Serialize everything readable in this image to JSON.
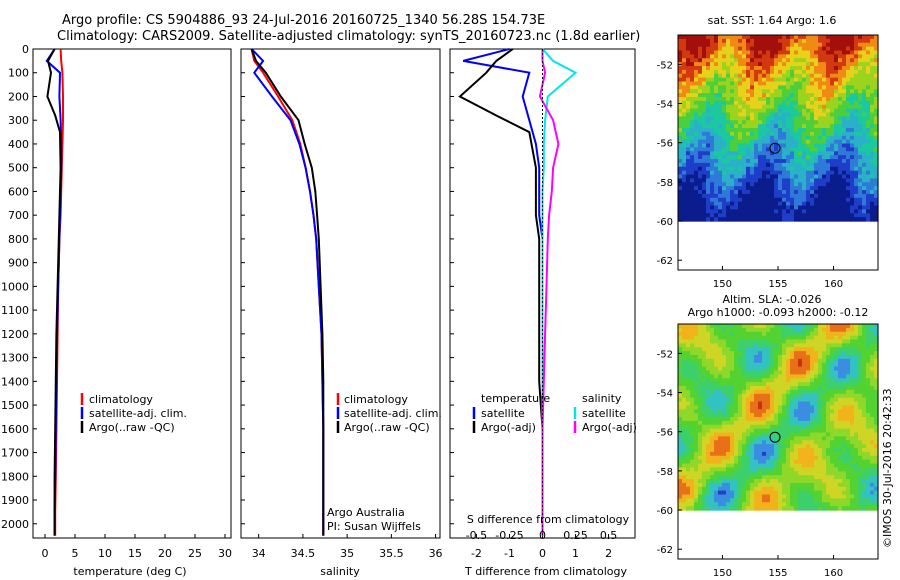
{
  "header": {
    "line1": "Argo profile: CS 5904886_93 24-Jul-2016 20160725_1340 56.28S 154.73E",
    "line2": "Climatology: CARS2009. Satellite-adjusted climatology: synTS_20160723.nc (1.8d earlier)"
  },
  "colors": {
    "climatology": "#ff0000",
    "satellite": "#0000ff",
    "argo": "#000000",
    "satellite_salinity": "#00e5ee",
    "argo_salinity": "#ff00ff"
  },
  "depth_axis": {
    "ticks": [
      "0",
      "100",
      "200",
      "300",
      "400",
      "500",
      "600",
      "700",
      "800",
      "900",
      "1000",
      "1100",
      "1200",
      "1300",
      "1400",
      "1500",
      "1600",
      "1700",
      "1800",
      "1900",
      "2000"
    ]
  },
  "temp_panel": {
    "xlabel": "temperature (deg C)",
    "ticks": [
      "0",
      "5",
      "10",
      "15",
      "20",
      "25",
      "30"
    ],
    "legend": [
      "climatology",
      "satellite-adj. clim.",
      "Argo(..raw -QC)"
    ]
  },
  "sal_panel": {
    "xlabel": "salinity",
    "ticks": [
      "34",
      "34.5",
      "35",
      "35.5",
      "36"
    ],
    "legend": [
      "climatology",
      "satellite-adj. clim.",
      "Argo(..raw -QC)"
    ],
    "note1": "Argo Australia",
    "note2": "PI: Susan Wijffels"
  },
  "diff_panel": {
    "xlabel": "T difference from climatology",
    "top_label": "S difference from climatology",
    "t_ticks": [
      "-2",
      "-1",
      "0",
      "1",
      "2"
    ],
    "s_ticks": [
      "-0.5",
      "-0.25",
      "0",
      "0.25",
      "0.5"
    ],
    "legend_temp_title": "temperature",
    "legend_sal_title": "salinity",
    "legend_temp": [
      "satellite",
      "Argo(-adj)"
    ],
    "legend_sal": [
      "satellite",
      "Argo(-adj)"
    ]
  },
  "map_sst": {
    "title": "sat. SST: 1.64 Argo: 1.6",
    "yticks": [
      "-52",
      "-54",
      "-56",
      "-58",
      "-60",
      "-62"
    ],
    "xticks": [
      "150",
      "155",
      "160"
    ]
  },
  "map_sla": {
    "title1": "Altim. SLA: -0.026",
    "title2": "Argo h1000: -0.093 h2000: -0.12",
    "yticks": [
      "-52",
      "-54",
      "-56",
      "-58",
      "-60",
      "-62"
    ],
    "xticks": [
      "150",
      "155",
      "160"
    ]
  },
  "credit": "©IMOS 30-Jul-2016 20:42:33",
  "chart_data": [
    {
      "type": "line",
      "name": "temperature profile",
      "xlabel": "temperature (deg C)",
      "ylabel": "",
      "xlim": [
        -2,
        31
      ],
      "ylim": [
        2060,
        0
      ],
      "series": [
        {
          "name": "climatology",
          "x": [
            2.6,
            2.7,
            2.9,
            3.0,
            3.0,
            2.9,
            2.8,
            2.7,
            2.6,
            2.4,
            2.2,
            2.1,
            2.0,
            1.9,
            1.8,
            1.7,
            1.7
          ],
          "y": [
            0,
            50,
            100,
            200,
            300,
            400,
            500,
            600,
            700,
            800,
            1000,
            1200,
            1400,
            1600,
            1800,
            1950,
            2050
          ]
        },
        {
          "name": "satellite-adj. clim.",
          "x": [
            1.6,
            0.3,
            2.5,
            2.4,
            2.6,
            2.7,
            2.7,
            2.6,
            2.5,
            2.4,
            2.2,
            2.0,
            1.9,
            1.8,
            1.7,
            1.6,
            1.6
          ],
          "y": [
            0,
            50,
            100,
            200,
            300,
            400,
            500,
            600,
            700,
            800,
            1000,
            1200,
            1400,
            1600,
            1800,
            1950,
            2050
          ]
        },
        {
          "name": "Argo(..raw -QC)",
          "x": [
            1.6,
            0.5,
            1.0,
            0.4,
            1.7,
            2.5,
            2.6,
            2.5,
            2.4,
            2.3,
            2.1,
            1.9,
            1.8,
            1.7,
            1.6,
            1.6,
            1.6
          ],
          "y": [
            0,
            50,
            100,
            200,
            280,
            350,
            500,
            600,
            700,
            800,
            1000,
            1200,
            1400,
            1600,
            1800,
            1950,
            2050
          ]
        }
      ]
    },
    {
      "type": "line",
      "name": "salinity profile",
      "xlabel": "salinity",
      "ylabel": "",
      "xlim": [
        33.8,
        36.05
      ],
      "ylim": [
        2060,
        0
      ],
      "series": [
        {
          "name": "climatology",
          "x": [
            33.92,
            33.95,
            34.05,
            34.22,
            34.38,
            34.47,
            34.53,
            34.58,
            34.62,
            34.65,
            34.68,
            34.71,
            34.72,
            34.73,
            34.73,
            34.73,
            34.73
          ],
          "y": [
            0,
            50,
            100,
            200,
            300,
            400,
            500,
            600,
            700,
            800,
            1000,
            1200,
            1400,
            1600,
            1800,
            1950,
            2050
          ]
        },
        {
          "name": "satellite-adj. clim.",
          "x": [
            33.92,
            34.05,
            33.95,
            34.15,
            34.36,
            34.46,
            34.53,
            34.58,
            34.62,
            34.65,
            34.68,
            34.71,
            34.72,
            34.73,
            34.73,
            34.73,
            34.73
          ],
          "y": [
            0,
            50,
            100,
            200,
            300,
            400,
            500,
            600,
            700,
            800,
            1000,
            1200,
            1400,
            1600,
            1800,
            1950,
            2050
          ]
        },
        {
          "name": "Argo(..raw -QC)",
          "x": [
            33.92,
            33.97,
            34.08,
            34.25,
            34.45,
            34.52,
            34.6,
            34.64,
            34.66,
            34.68,
            34.7,
            34.72,
            34.73,
            34.73,
            34.73,
            34.73,
            34.73
          ],
          "y": [
            0,
            50,
            100,
            200,
            300,
            400,
            500,
            600,
            700,
            800,
            1000,
            1200,
            1400,
            1600,
            1800,
            1950,
            2050
          ]
        }
      ]
    },
    {
      "type": "line",
      "name": "difference from climatology",
      "xlabel": "T difference from climatology",
      "ylabel": "",
      "xlim": [
        -2.8,
        2.8
      ],
      "ylim": [
        2060,
        0
      ],
      "series": [
        {
          "name": "temperature satellite",
          "x": [
            -1.0,
            -2.4,
            -0.4,
            -0.6,
            -0.4,
            -0.2,
            -0.1,
            -0.1,
            -0.1,
            0,
            0,
            0,
            0,
            0,
            0,
            0,
            0
          ],
          "y": [
            0,
            50,
            100,
            200,
            300,
            400,
            500,
            600,
            700,
            800,
            1000,
            1200,
            1400,
            1600,
            1800,
            1950,
            2050
          ]
        },
        {
          "name": "temperature Argo(-adj)",
          "x": [
            -0.9,
            -1.4,
            -1.7,
            -2.5,
            -1.4,
            -0.4,
            -0.2,
            -0.2,
            -0.2,
            -0.1,
            -0.1,
            -0.1,
            -0.1,
            0,
            0,
            0,
            0
          ],
          "y": [
            0,
            50,
            100,
            200,
            280,
            350,
            500,
            600,
            700,
            800,
            1000,
            1200,
            1400,
            1600,
            1800,
            1950,
            2050
          ]
        },
        {
          "name": "salinity satellite",
          "x": [
            0,
            0.08,
            0.25,
            0.04,
            0.02,
            0.01,
            0.01,
            0,
            0,
            0,
            0,
            0,
            0,
            0,
            0,
            0,
            0
          ],
          "y": [
            0,
            50,
            100,
            200,
            300,
            400,
            500,
            600,
            700,
            800,
            1000,
            1200,
            1400,
            1600,
            1800,
            1950,
            2050
          ]
        },
        {
          "name": "salinity Argo(-adj)",
          "x": [
            0,
            0,
            0.02,
            -0.02,
            0.08,
            0.12,
            0.08,
            0.07,
            0.05,
            0.04,
            0.03,
            0.02,
            0.01,
            0,
            0,
            0,
            0
          ],
          "y": [
            0,
            50,
            100,
            200,
            300,
            400,
            500,
            600,
            700,
            800,
            1000,
            1200,
            1400,
            1600,
            1800,
            1950,
            2050
          ]
        }
      ]
    },
    {
      "type": "heatmap",
      "name": "sat. SST: 1.64 Argo: 1.6",
      "xlim": [
        146,
        164
      ],
      "ylim": [
        -62.5,
        -50.5
      ],
      "xticks": [
        150,
        155,
        160
      ],
      "yticks": [
        -52,
        -54,
        -56,
        -58,
        -60,
        -62
      ],
      "marker": {
        "lon": 154.73,
        "lat": -56.28
      }
    },
    {
      "type": "heatmap",
      "name": "Altim. SLA: -0.026",
      "xlim": [
        146,
        164
      ],
      "ylim": [
        -62.5,
        -50.5
      ],
      "xticks": [
        150,
        155,
        160
      ],
      "yticks": [
        -52,
        -54,
        -56,
        -58,
        -60,
        -62
      ],
      "marker": {
        "lon": 154.73,
        "lat": -56.28
      }
    }
  ]
}
